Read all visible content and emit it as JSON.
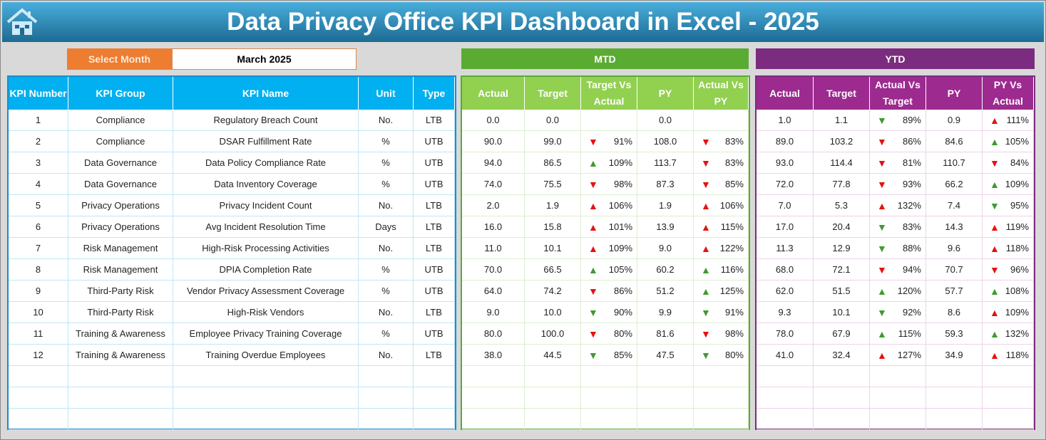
{
  "title": "Data Privacy Office KPI Dashboard  in Excel - 2025",
  "select_month": {
    "label": "Select Month",
    "value": "March 2025"
  },
  "sections": {
    "mtd": "MTD",
    "ytd": "YTD"
  },
  "colors": {
    "kpi_header": "#00b0f0",
    "mtd_header": "#92d050",
    "mtd_title": "#5aab32",
    "ytd_header": "#9c2a8f",
    "ytd_title": "#7b2c7e",
    "up_good": "#3f9a2f",
    "bad": "#e81010"
  },
  "kpi_headers": [
    "KPI Number",
    "KPI Group",
    "KPI Name",
    "Unit",
    "Type"
  ],
  "mtd_headers": [
    "Actual",
    "Target",
    "Target Vs Actual",
    "PY",
    "Actual Vs PY"
  ],
  "ytd_headers": [
    "Actual",
    "Target",
    "Actual Vs Target",
    "PY",
    "PY Vs Actual"
  ],
  "rows": [
    {
      "num": "1",
      "group": "Compliance",
      "name": "Regulatory Breach Count",
      "unit": "No.",
      "type": "LTB",
      "mtd": [
        "0.0",
        "0.0",
        null,
        "0.0",
        null
      ],
      "ytd": [
        "1.0",
        "1.1",
        [
          "down",
          "green",
          "89%"
        ],
        "0.9",
        [
          "up",
          "red",
          "111%"
        ]
      ]
    },
    {
      "num": "2",
      "group": "Compliance",
      "name": "DSAR Fulfillment Rate",
      "unit": "%",
      "type": "UTB",
      "mtd": [
        "90.0",
        "99.0",
        [
          "down",
          "red",
          "91%"
        ],
        "108.0",
        [
          "down",
          "red",
          "83%"
        ]
      ],
      "ytd": [
        "89.0",
        "103.2",
        [
          "down",
          "red",
          "86%"
        ],
        "84.6",
        [
          "up",
          "green",
          "105%"
        ]
      ]
    },
    {
      "num": "3",
      "group": "Data Governance",
      "name": "Data Policy Compliance Rate",
      "unit": "%",
      "type": "UTB",
      "mtd": [
        "94.0",
        "86.5",
        [
          "up",
          "green",
          "109%"
        ],
        "113.7",
        [
          "down",
          "red",
          "83%"
        ]
      ],
      "ytd": [
        "93.0",
        "114.4",
        [
          "down",
          "red",
          "81%"
        ],
        "110.7",
        [
          "down",
          "red",
          "84%"
        ]
      ]
    },
    {
      "num": "4",
      "group": "Data Governance",
      "name": "Data Inventory Coverage",
      "unit": "%",
      "type": "UTB",
      "mtd": [
        "74.0",
        "75.5",
        [
          "down",
          "red",
          "98%"
        ],
        "87.3",
        [
          "down",
          "red",
          "85%"
        ]
      ],
      "ytd": [
        "72.0",
        "77.8",
        [
          "down",
          "red",
          "93%"
        ],
        "66.2",
        [
          "up",
          "green",
          "109%"
        ]
      ]
    },
    {
      "num": "5",
      "group": "Privacy Operations",
      "name": "Privacy Incident Count",
      "unit": "No.",
      "type": "LTB",
      "mtd": [
        "2.0",
        "1.9",
        [
          "up",
          "red",
          "106%"
        ],
        "1.9",
        [
          "up",
          "red",
          "106%"
        ]
      ],
      "ytd": [
        "7.0",
        "5.3",
        [
          "up",
          "red",
          "132%"
        ],
        "7.4",
        [
          "down",
          "green",
          "95%"
        ]
      ]
    },
    {
      "num": "6",
      "group": "Privacy Operations",
      "name": "Avg Incident Resolution Time",
      "unit": "Days",
      "type": "LTB",
      "mtd": [
        "16.0",
        "15.8",
        [
          "up",
          "red",
          "101%"
        ],
        "13.9",
        [
          "up",
          "red",
          "115%"
        ]
      ],
      "ytd": [
        "17.0",
        "20.4",
        [
          "down",
          "green",
          "83%"
        ],
        "14.3",
        [
          "up",
          "red",
          "119%"
        ]
      ]
    },
    {
      "num": "7",
      "group": "Risk Management",
      "name": "High-Risk Processing Activities",
      "unit": "No.",
      "type": "LTB",
      "mtd": [
        "11.0",
        "10.1",
        [
          "up",
          "red",
          "109%"
        ],
        "9.0",
        [
          "up",
          "red",
          "122%"
        ]
      ],
      "ytd": [
        "11.3",
        "12.9",
        [
          "down",
          "green",
          "88%"
        ],
        "9.6",
        [
          "up",
          "red",
          "118%"
        ]
      ]
    },
    {
      "num": "8",
      "group": "Risk Management",
      "name": "DPIA Completion Rate",
      "unit": "%",
      "type": "UTB",
      "mtd": [
        "70.0",
        "66.5",
        [
          "up",
          "green",
          "105%"
        ],
        "60.2",
        [
          "up",
          "green",
          "116%"
        ]
      ],
      "ytd": [
        "68.0",
        "72.1",
        [
          "down",
          "red",
          "94%"
        ],
        "70.7",
        [
          "down",
          "red",
          "96%"
        ]
      ]
    },
    {
      "num": "9",
      "group": "Third-Party Risk",
      "name": "Vendor Privacy Assessment Coverage",
      "unit": "%",
      "type": "UTB",
      "mtd": [
        "64.0",
        "74.2",
        [
          "down",
          "red",
          "86%"
        ],
        "51.2",
        [
          "up",
          "green",
          "125%"
        ]
      ],
      "ytd": [
        "62.0",
        "51.5",
        [
          "up",
          "green",
          "120%"
        ],
        "57.7",
        [
          "up",
          "green",
          "108%"
        ]
      ]
    },
    {
      "num": "10",
      "group": "Third-Party Risk",
      "name": "High-Risk Vendors",
      "unit": "No.",
      "type": "LTB",
      "mtd": [
        "9.0",
        "10.0",
        [
          "down",
          "green",
          "90%"
        ],
        "9.9",
        [
          "down",
          "green",
          "91%"
        ]
      ],
      "ytd": [
        "9.3",
        "10.1",
        [
          "down",
          "green",
          "92%"
        ],
        "8.6",
        [
          "up",
          "red",
          "109%"
        ]
      ]
    },
    {
      "num": "11",
      "group": "Training & Awareness",
      "name": "Employee Privacy Training Coverage",
      "unit": "%",
      "type": "UTB",
      "mtd": [
        "80.0",
        "100.0",
        [
          "down",
          "red",
          "80%"
        ],
        "81.6",
        [
          "down",
          "red",
          "98%"
        ]
      ],
      "ytd": [
        "78.0",
        "67.9",
        [
          "up",
          "green",
          "115%"
        ],
        "59.3",
        [
          "up",
          "green",
          "132%"
        ]
      ]
    },
    {
      "num": "12",
      "group": "Training & Awareness",
      "name": "Training Overdue Employees",
      "unit": "No.",
      "type": "LTB",
      "mtd": [
        "38.0",
        "44.5",
        [
          "down",
          "green",
          "85%"
        ],
        "47.5",
        [
          "down",
          "green",
          "80%"
        ]
      ],
      "ytd": [
        "41.0",
        "32.4",
        [
          "up",
          "red",
          "127%"
        ],
        "34.9",
        [
          "up",
          "red",
          "118%"
        ]
      ]
    }
  ]
}
